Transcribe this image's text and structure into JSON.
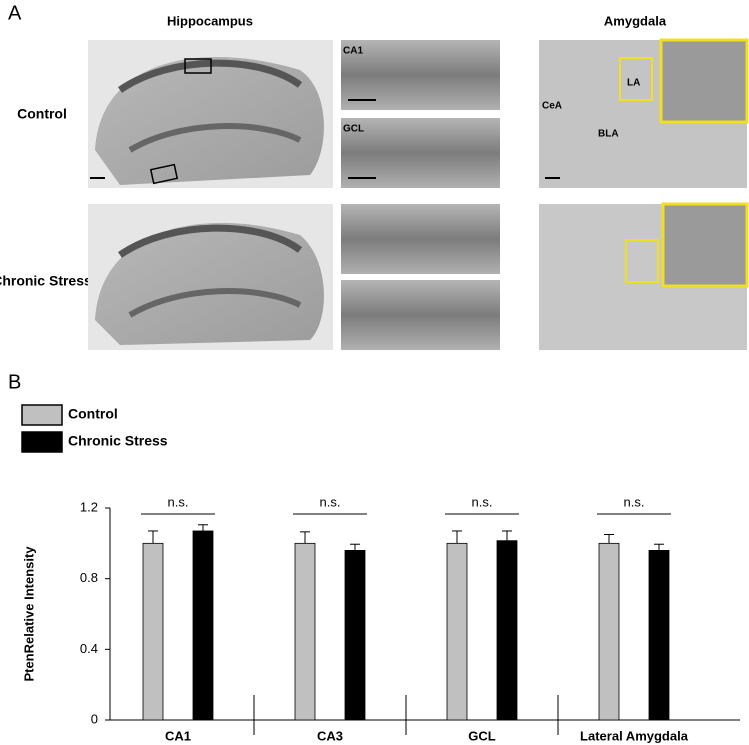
{
  "panel_a": {
    "label": "A",
    "hippocampus_title": "Hippocampus",
    "amygdala_title": "Amygdala",
    "rows": [
      "Control",
      "Chronic Stress"
    ],
    "inset_labels": [
      "CA1",
      "GCL"
    ],
    "amygdala_labels": [
      "CeA",
      "LA",
      "BLA"
    ]
  },
  "panel_b_label": "B",
  "chart_data": {
    "type": "bar",
    "y_label": "PtenRelative Intensity",
    "categories": [
      "CA1",
      "CA3",
      "GCL",
      "Lateral Amygdala"
    ],
    "series": [
      {
        "name": "Control",
        "color": "#c0c0c0",
        "values": [
          1.0,
          1.0,
          1.0,
          1.0
        ],
        "errors": [
          0.07,
          0.065,
          0.07,
          0.05
        ]
      },
      {
        "name": "Chronic Stress",
        "color": "#000000",
        "values": [
          1.07,
          0.96,
          1.015,
          0.96
        ],
        "errors": [
          0.035,
          0.035,
          0.055,
          0.035
        ]
      }
    ],
    "annotations": [
      "n.s.",
      "n.s.",
      "n.s.",
      "n.s."
    ],
    "ylim": [
      0,
      1.2
    ],
    "yticks": [
      0,
      0.4,
      0.8,
      1.2
    ]
  }
}
